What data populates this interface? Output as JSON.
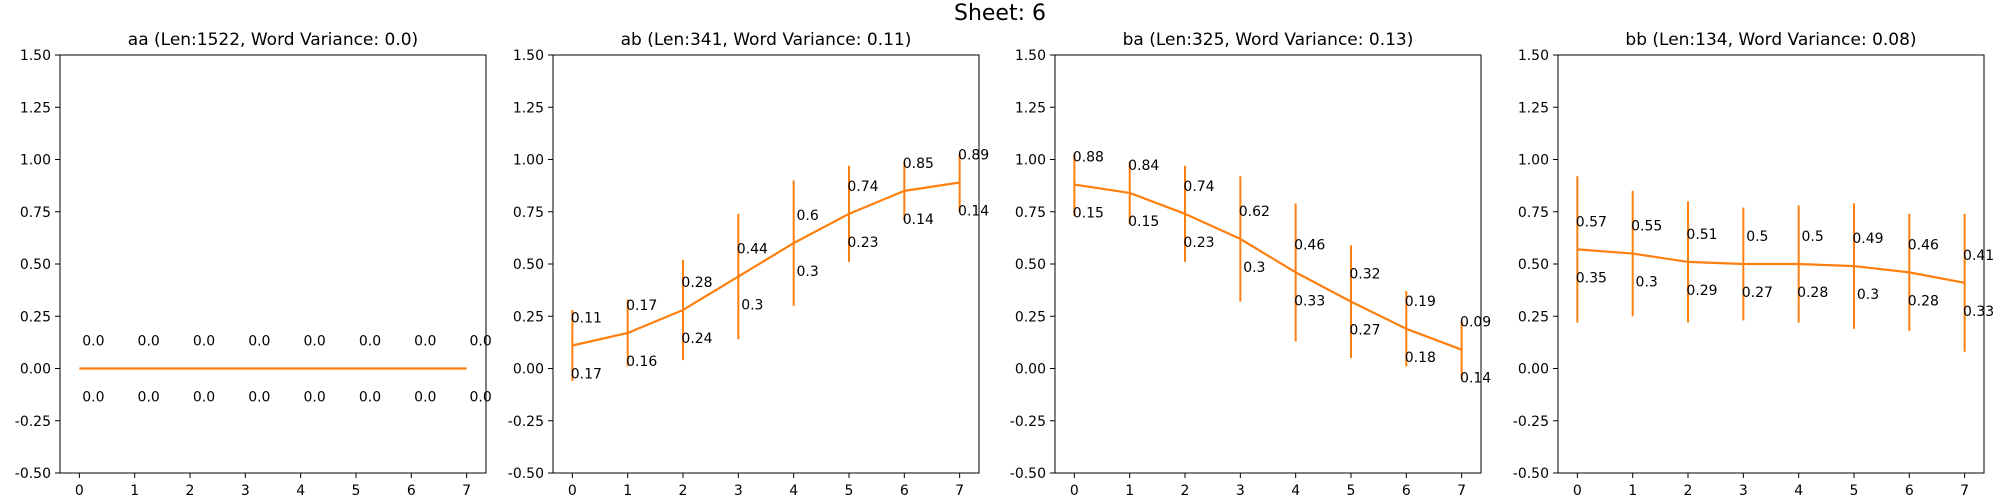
{
  "figure_title": "Sheet: 6",
  "style": {
    "line_color": "#ff7f0e",
    "axis_color": "#000000",
    "background": "#ffffff"
  },
  "chart_data": [
    {
      "type": "line",
      "title": "aa (Len:1522, Word Variance: 0.0)",
      "xlabel": "",
      "ylabel": "",
      "x": [
        0,
        1,
        2,
        3,
        4,
        5,
        6,
        7
      ],
      "xlim": [
        -0.35,
        7.35
      ],
      "ylim": [
        -0.5,
        1.5
      ],
      "yticks": [
        "-0.50",
        "-0.25",
        "0.00",
        "0.25",
        "0.50",
        "0.75",
        "1.00",
        "1.25",
        "1.50"
      ],
      "xticks": [
        "0",
        "1",
        "2",
        "3",
        "4",
        "5",
        "6",
        "7"
      ],
      "grid": false,
      "series": [
        {
          "values": [
            0,
            0,
            0,
            0,
            0,
            0,
            0,
            0
          ],
          "error_bars": [
            0,
            0,
            0,
            0,
            0,
            0,
            0,
            0
          ],
          "upper_labels": [
            "0.0",
            "0.0",
            "0.0",
            "0.0",
            "0.0",
            "0.0",
            "0.0",
            "0.0"
          ],
          "lower_labels": [
            "0.0",
            "0.0",
            "0.0",
            "0.0",
            "0.0",
            "0.0",
            "0.0",
            "0.0"
          ]
        }
      ]
    },
    {
      "type": "line",
      "title": "ab (Len:341, Word Variance: 0.11)",
      "xlabel": "",
      "ylabel": "",
      "x": [
        0,
        1,
        2,
        3,
        4,
        5,
        6,
        7
      ],
      "xlim": [
        -0.35,
        7.35
      ],
      "ylim": [
        -0.5,
        1.5
      ],
      "yticks": [
        "-0.50",
        "-0.25",
        "0.00",
        "0.25",
        "0.50",
        "0.75",
        "1.00",
        "1.25",
        "1.50"
      ],
      "xticks": [
        "0",
        "1",
        "2",
        "3",
        "4",
        "5",
        "6",
        "7"
      ],
      "grid": false,
      "series": [
        {
          "values": [
            0.11,
            0.17,
            0.28,
            0.44,
            0.6,
            0.74,
            0.85,
            0.89
          ],
          "error_bars": [
            0.17,
            0.16,
            0.24,
            0.3,
            0.3,
            0.23,
            0.14,
            0.14
          ],
          "upper_labels": [
            "0.11",
            "0.17",
            "0.28",
            "0.44",
            "0.6",
            "0.74",
            "0.85",
            "0.89"
          ],
          "lower_labels": [
            "0.17",
            "0.16",
            "0.24",
            "0.3",
            "0.3",
            "0.23",
            "0.14",
            "0.14"
          ]
        }
      ]
    },
    {
      "type": "line",
      "title": "ba (Len:325, Word Variance: 0.13)",
      "xlabel": "",
      "ylabel": "",
      "x": [
        0,
        1,
        2,
        3,
        4,
        5,
        6,
        7
      ],
      "xlim": [
        -0.35,
        7.35
      ],
      "ylim": [
        -0.5,
        1.5
      ],
      "yticks": [
        "-0.50",
        "-0.25",
        "0.00",
        "0.25",
        "0.50",
        "0.75",
        "1.00",
        "1.25",
        "1.50"
      ],
      "xticks": [
        "0",
        "1",
        "2",
        "3",
        "4",
        "5",
        "6",
        "7"
      ],
      "grid": false,
      "series": [
        {
          "values": [
            0.88,
            0.84,
            0.74,
            0.62,
            0.46,
            0.32,
            0.19,
            0.09
          ],
          "error_bars": [
            0.15,
            0.15,
            0.23,
            0.3,
            0.33,
            0.27,
            0.18,
            0.14
          ],
          "upper_labels": [
            "0.88",
            "0.84",
            "0.74",
            "0.62",
            "0.46",
            "0.32",
            "0.19",
            "0.09"
          ],
          "lower_labels": [
            "0.15",
            "0.15",
            "0.23",
            "0.3",
            "0.33",
            "0.27",
            "0.18",
            "0.14"
          ]
        }
      ]
    },
    {
      "type": "line",
      "title": "bb (Len:134, Word Variance: 0.08)",
      "xlabel": "",
      "ylabel": "",
      "x": [
        0,
        1,
        2,
        3,
        4,
        5,
        6,
        7
      ],
      "xlim": [
        -0.35,
        7.35
      ],
      "ylim": [
        -0.5,
        1.5
      ],
      "yticks": [
        "-0.50",
        "-0.25",
        "0.00",
        "0.25",
        "0.50",
        "0.75",
        "1.00",
        "1.25",
        "1.50"
      ],
      "xticks": [
        "0",
        "1",
        "2",
        "3",
        "4",
        "5",
        "6",
        "7"
      ],
      "grid": false,
      "series": [
        {
          "values": [
            0.57,
            0.55,
            0.51,
            0.5,
            0.5,
            0.49,
            0.46,
            0.41
          ],
          "error_bars": [
            0.35,
            0.3,
            0.29,
            0.27,
            0.28,
            0.3,
            0.28,
            0.33
          ],
          "upper_labels": [
            "0.57",
            "0.55",
            "0.51",
            "0.5",
            "0.5",
            "0.49",
            "0.46",
            "0.41"
          ],
          "lower_labels": [
            "0.35",
            "0.3",
            "0.29",
            "0.27",
            "0.28",
            "0.3",
            "0.28",
            "0.33"
          ]
        }
      ]
    }
  ]
}
